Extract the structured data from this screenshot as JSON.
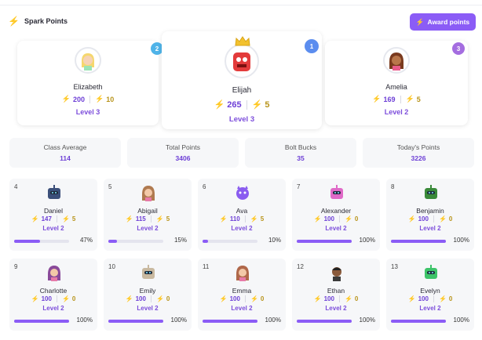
{
  "header": {
    "title": "Spark Points",
    "award_label": "Award points"
  },
  "podium": [
    {
      "rank": "1",
      "name": "Elijah",
      "points": "265",
      "bucks": "5",
      "level": "Level 3",
      "rank_color": "#5b8def"
    },
    {
      "rank": "2",
      "name": "Elizabeth",
      "points": "200",
      "bucks": "10",
      "level": "Level 3",
      "rank_color": "#4fb3e8"
    },
    {
      "rank": "3",
      "name": "Amelia",
      "points": "169",
      "bucks": "5",
      "level": "Level 2",
      "rank_color": "#a46de0"
    }
  ],
  "stats": [
    {
      "label": "Class Average",
      "value": "114"
    },
    {
      "label": "Total Points",
      "value": "3406"
    },
    {
      "label": "Bolt Bucks",
      "value": "35"
    },
    {
      "label": "Today's Points",
      "value": "3226"
    }
  ],
  "students": [
    {
      "rank": "4",
      "name": "Daniel",
      "points": "147",
      "bucks": "5",
      "level": "Level 2",
      "progress": 0.47,
      "progress_label": "47%",
      "avatar": "robot-icon"
    },
    {
      "rank": "5",
      "name": "Abigail",
      "points": "115",
      "bucks": "5",
      "level": "Level 2",
      "progress": 0.15,
      "progress_label": "15%",
      "avatar": "girl-icon"
    },
    {
      "rank": "6",
      "name": "Ava",
      "points": "110",
      "bucks": "5",
      "level": "Level 2",
      "progress": 0.1,
      "progress_label": "10%",
      "avatar": "monster-icon"
    },
    {
      "rank": "7",
      "name": "Alexander",
      "points": "100",
      "bucks": "0",
      "level": "Level 2",
      "progress": 1.0,
      "progress_label": "100%",
      "avatar": "robot-icon"
    },
    {
      "rank": "8",
      "name": "Benjamin",
      "points": "100",
      "bucks": "0",
      "level": "Level 2",
      "progress": 1.0,
      "progress_label": "100%",
      "avatar": "robot-icon"
    },
    {
      "rank": "9",
      "name": "Charlotte",
      "points": "100",
      "bucks": "0",
      "level": "Level 2",
      "progress": 1.0,
      "progress_label": "100%",
      "avatar": "girl-icon"
    },
    {
      "rank": "10",
      "name": "Emily",
      "points": "100",
      "bucks": "0",
      "level": "Level 2",
      "progress": 1.0,
      "progress_label": "100%",
      "avatar": "robot-icon"
    },
    {
      "rank": "11",
      "name": "Emma",
      "points": "100",
      "bucks": "0",
      "level": "Level 2",
      "progress": 1.0,
      "progress_label": "100%",
      "avatar": "girl-icon"
    },
    {
      "rank": "12",
      "name": "Ethan",
      "points": "100",
      "bucks": "0",
      "level": "Level 2",
      "progress": 1.0,
      "progress_label": "100%",
      "avatar": "boy-icon"
    },
    {
      "rank": "13",
      "name": "Evelyn",
      "points": "100",
      "bucks": "0",
      "level": "Level 2",
      "progress": 1.0,
      "progress_label": "100%",
      "avatar": "robot-icon"
    }
  ],
  "colors": {
    "accent": "#8b5cf6",
    "bolt_purple": "#8b5cf6",
    "bolt_yellow": "#f2c12e"
  }
}
